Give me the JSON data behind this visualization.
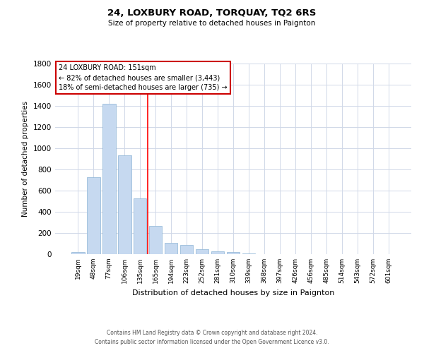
{
  "title": "24, LOXBURY ROAD, TORQUAY, TQ2 6RS",
  "subtitle": "Size of property relative to detached houses in Paignton",
  "xlabel": "Distribution of detached houses by size in Paignton",
  "ylabel": "Number of detached properties",
  "bar_labels": [
    "19sqm",
    "48sqm",
    "77sqm",
    "106sqm",
    "135sqm",
    "165sqm",
    "194sqm",
    "223sqm",
    "252sqm",
    "281sqm",
    "310sqm",
    "339sqm",
    "368sqm",
    "397sqm",
    "426sqm",
    "456sqm",
    "485sqm",
    "514sqm",
    "543sqm",
    "572sqm",
    "601sqm"
  ],
  "bar_values": [
    20,
    730,
    1420,
    935,
    530,
    270,
    105,
    90,
    50,
    25,
    18,
    8,
    3,
    2,
    1,
    1,
    0,
    0,
    0,
    0,
    0
  ],
  "bar_color": "#c6d9f0",
  "bar_edge_color": "#8cb4d5",
  "vline_x": 4.5,
  "vline_color": "red",
  "ylim": [
    0,
    1800
  ],
  "yticks": [
    0,
    200,
    400,
    600,
    800,
    1000,
    1200,
    1400,
    1600,
    1800
  ],
  "annotation_title": "24 LOXBURY ROAD: 151sqm",
  "annotation_line1": "← 82% of detached houses are smaller (3,443)",
  "annotation_line2": "18% of semi-detached houses are larger (735) →",
  "annotation_box_color": "#ffffff",
  "annotation_box_edge": "#cc0000",
  "footer_line1": "Contains HM Land Registry data © Crown copyright and database right 2024.",
  "footer_line2": "Contains public sector information licensed under the Open Government Licence v3.0.",
  "background_color": "#ffffff",
  "grid_color": "#d0d8e8"
}
